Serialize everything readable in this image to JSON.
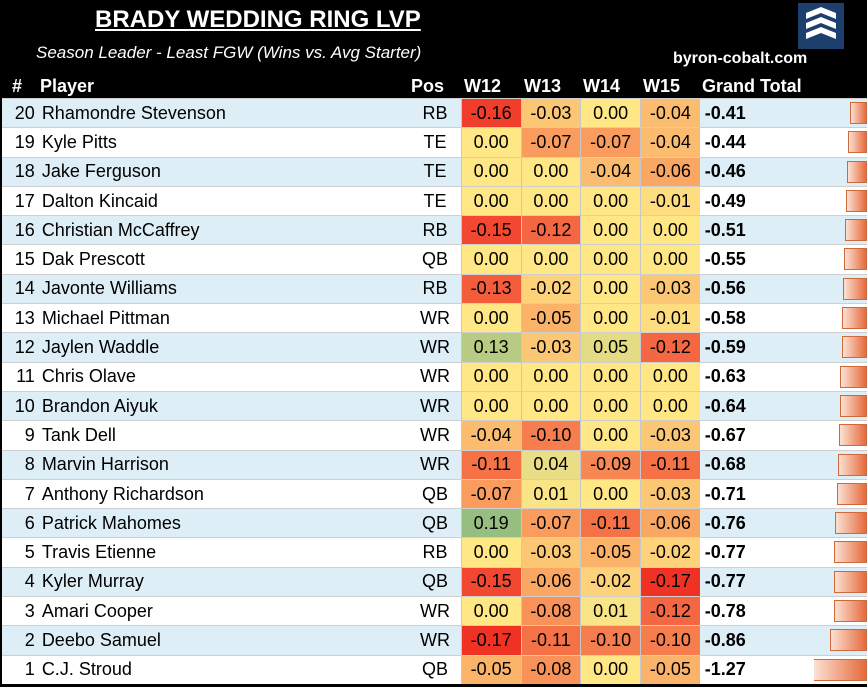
{
  "header": {
    "title": "BRADY WEDDING RING LVP",
    "subtitle": "Season Leader - Least FGW (Wins vs. Avg Starter)",
    "site": "byron-cobalt.com"
  },
  "chart_data": {
    "type": "table",
    "columns": [
      "#",
      "Player",
      "Pos",
      "W12",
      "W13",
      "W14",
      "W15",
      "Grand Total"
    ],
    "rows": [
      {
        "rank": "20",
        "player": "Rhamondre Stevenson",
        "pos": "RB",
        "w12": "-0.16",
        "w13": "-0.03",
        "w14": "0.00",
        "w15": "-0.04",
        "total": "-0.41"
      },
      {
        "rank": "19",
        "player": "Kyle Pitts",
        "pos": "TE",
        "w12": "0.00",
        "w13": "-0.07",
        "w14": "-0.07",
        "w15": "-0.04",
        "total": "-0.44"
      },
      {
        "rank": "18",
        "player": "Jake Ferguson",
        "pos": "TE",
        "w12": "0.00",
        "w13": "0.00",
        "w14": "-0.04",
        "w15": "-0.06",
        "total": "-0.46"
      },
      {
        "rank": "17",
        "player": "Dalton Kincaid",
        "pos": "TE",
        "w12": "0.00",
        "w13": "0.00",
        "w14": "0.00",
        "w15": "-0.01",
        "total": "-0.49"
      },
      {
        "rank": "16",
        "player": "Christian McCaffrey",
        "pos": "RB",
        "w12": "-0.15",
        "w13": "-0.12",
        "w14": "0.00",
        "w15": "0.00",
        "total": "-0.51"
      },
      {
        "rank": "15",
        "player": "Dak Prescott",
        "pos": "QB",
        "w12": "0.00",
        "w13": "0.00",
        "w14": "0.00",
        "w15": "0.00",
        "total": "-0.55"
      },
      {
        "rank": "14",
        "player": "Javonte Williams",
        "pos": "RB",
        "w12": "-0.13",
        "w13": "-0.02",
        "w14": "0.00",
        "w15": "-0.03",
        "total": "-0.56"
      },
      {
        "rank": "13",
        "player": "Michael Pittman",
        "pos": "WR",
        "w12": "0.00",
        "w13": "-0.05",
        "w14": "0.00",
        "w15": "-0.01",
        "total": "-0.58"
      },
      {
        "rank": "12",
        "player": "Jaylen Waddle",
        "pos": "WR",
        "w12": "0.13",
        "w13": "-0.03",
        "w14": "0.05",
        "w15": "-0.12",
        "total": "-0.59"
      },
      {
        "rank": "11",
        "player": "Chris Olave",
        "pos": "WR",
        "w12": "0.00",
        "w13": "0.00",
        "w14": "0.00",
        "w15": "0.00",
        "total": "-0.63"
      },
      {
        "rank": "10",
        "player": "Brandon Aiyuk",
        "pos": "WR",
        "w12": "0.00",
        "w13": "0.00",
        "w14": "0.00",
        "w15": "0.00",
        "total": "-0.64"
      },
      {
        "rank": "9",
        "player": "Tank Dell",
        "pos": "WR",
        "w12": "-0.04",
        "w13": "-0.10",
        "w14": "0.00",
        "w15": "-0.03",
        "total": "-0.67"
      },
      {
        "rank": "8",
        "player": "Marvin Harrison",
        "pos": "WR",
        "w12": "-0.11",
        "w13": "0.04",
        "w14": "-0.09",
        "w15": "-0.11",
        "total": "-0.68"
      },
      {
        "rank": "7",
        "player": "Anthony Richardson",
        "pos": "QB",
        "w12": "-0.07",
        "w13": "0.01",
        "w14": "0.00",
        "w15": "-0.03",
        "total": "-0.71"
      },
      {
        "rank": "6",
        "player": "Patrick Mahomes",
        "pos": "QB",
        "w12": "0.19",
        "w13": "-0.07",
        "w14": "-0.11",
        "w15": "-0.06",
        "total": "-0.76"
      },
      {
        "rank": "5",
        "player": "Travis Etienne",
        "pos": "RB",
        "w12": "0.00",
        "w13": "-0.03",
        "w14": "-0.05",
        "w15": "-0.02",
        "total": "-0.77"
      },
      {
        "rank": "4",
        "player": "Kyler Murray",
        "pos": "QB",
        "w12": "-0.15",
        "w13": "-0.06",
        "w14": "-0.02",
        "w15": "-0.17",
        "total": "-0.77"
      },
      {
        "rank": "3",
        "player": "Amari Cooper",
        "pos": "WR",
        "w12": "0.00",
        "w13": "-0.08",
        "w14": "0.01",
        "w15": "-0.12",
        "total": "-0.78"
      },
      {
        "rank": "2",
        "player": "Deebo Samuel",
        "pos": "WR",
        "w12": "-0.17",
        "w13": "-0.11",
        "w14": "-0.10",
        "w15": "-0.10",
        "total": "-0.86"
      },
      {
        "rank": "1",
        "player": "C.J. Stroud",
        "pos": "QB",
        "w12": "-0.05",
        "w13": "-0.08",
        "w14": "0.00",
        "w15": "-0.05",
        "total": "-1.27"
      }
    ]
  }
}
